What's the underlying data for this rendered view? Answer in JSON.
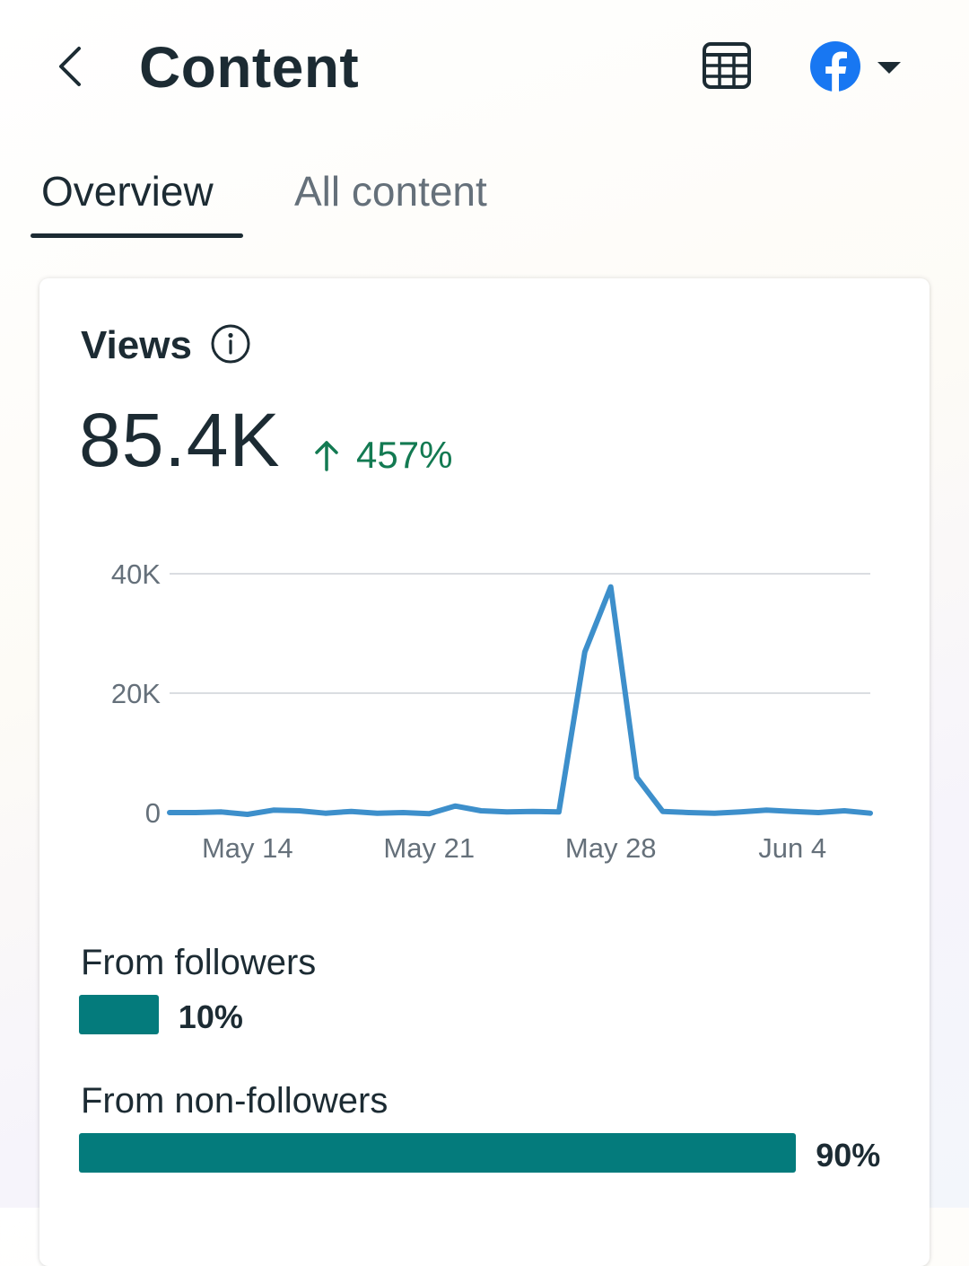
{
  "header": {
    "title": "Content",
    "back_icon": "chevron-left-icon",
    "calendar_icon": "calendar-grid-icon",
    "account_icon": "facebook-icon",
    "dropdown_icon": "caret-down-icon",
    "brand_color": "#1877f2"
  },
  "tabs": [
    {
      "label": "Overview",
      "active": true
    },
    {
      "label": "All content",
      "active": false
    }
  ],
  "views_card": {
    "title": "Views",
    "value": "85.4K",
    "change": "457%",
    "change_direction": "up",
    "change_color": "#137a52"
  },
  "chart_data": {
    "type": "line",
    "title": "Views",
    "ylim": [
      0,
      40000
    ],
    "y_ticks": [
      {
        "value": 0,
        "label": "0"
      },
      {
        "value": 20000,
        "label": "20K"
      },
      {
        "value": 40000,
        "label": "40K"
      }
    ],
    "x_ticks": [
      {
        "index": 3,
        "label": "May 14"
      },
      {
        "index": 10,
        "label": "May 21"
      },
      {
        "index": 17,
        "label": "May 28"
      },
      {
        "index": 24,
        "label": "Jun 4"
      }
    ],
    "series": [
      {
        "name": "Views",
        "color": "#3d8fcb",
        "values": [
          0,
          0,
          100,
          -300,
          400,
          300,
          -100,
          200,
          -100,
          0,
          -200,
          1100,
          300,
          100,
          200,
          100,
          26900,
          37800,
          5900,
          200,
          0,
          -100,
          100,
          400,
          200,
          0,
          300,
          -100
        ]
      }
    ]
  },
  "audience": {
    "followers": {
      "label": "From followers",
      "percent": 10,
      "percent_label": "10%"
    },
    "non_followers": {
      "label": "From non-followers",
      "percent": 90,
      "percent_label": "90%"
    },
    "bar_color": "#047b7c"
  }
}
